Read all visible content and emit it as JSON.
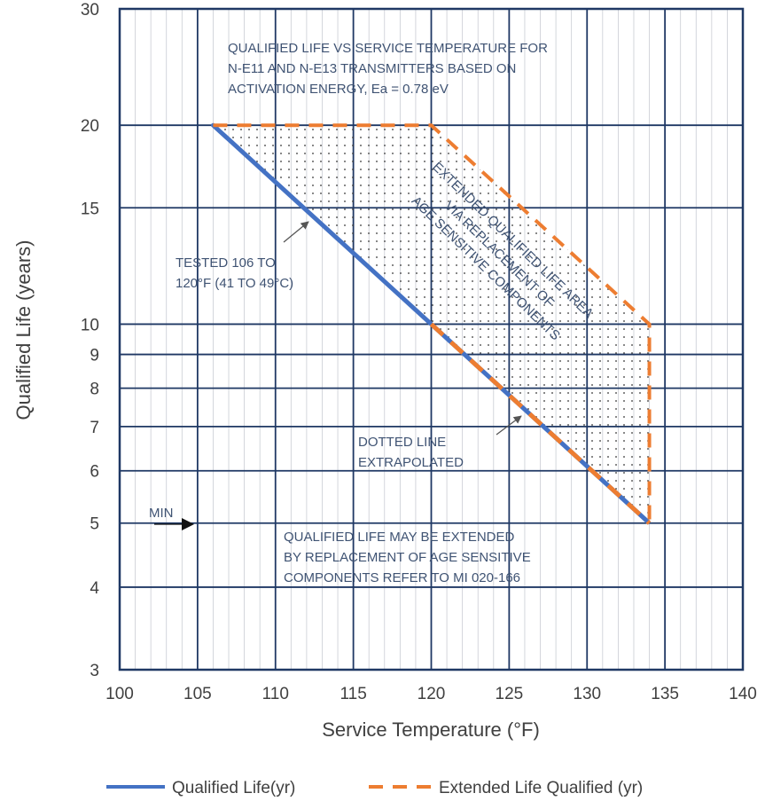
{
  "chart_data": {
    "type": "line",
    "xlabel": "Service Temperature (°F)",
    "ylabel": "Qualified Life (years)",
    "xlim": [
      100,
      140
    ],
    "ylim": [
      3,
      30
    ],
    "yscale": "log",
    "xticks": [
      100,
      105,
      110,
      115,
      120,
      125,
      130,
      135,
      140
    ],
    "yticks": [
      3,
      4,
      5,
      6,
      7,
      8,
      9,
      10,
      15,
      20,
      30
    ],
    "grid": true,
    "legend_position": "bottom",
    "series": [
      {
        "name": "Qualified Life(yr)",
        "color": "#4472c4",
        "style": "solid",
        "points": [
          [
            106,
            20
          ],
          [
            120,
            10
          ]
        ]
      },
      {
        "name": "Qualified Life(yr)",
        "color": "#4472c4",
        "style": "dotted-extrapolated",
        "points": [
          [
            120,
            10
          ],
          [
            134,
            5
          ]
        ]
      },
      {
        "name": "Extended Life Qualified (yr)",
        "color": "#ed7d31",
        "style": "dashed",
        "points": [
          [
            106,
            20
          ],
          [
            120,
            20
          ],
          [
            134,
            10
          ],
          [
            134,
            5
          ]
        ]
      }
    ],
    "shaded_region": {
      "label": "EXTENDED QUALIFIED LIFE AREA VIA REPLACEMENT OF AGE SENSITIVE COMPONENTS",
      "polygon": [
        [
          106,
          20
        ],
        [
          120,
          20
        ],
        [
          134,
          10
        ],
        [
          134,
          5
        ],
        [
          120,
          10
        ]
      ]
    },
    "annotations": {
      "title_lines": [
        "QUALIFIED LIFE VS SERVICE TEMPERATURE FOR",
        "N-E11 AND N-E13 TRANSMITTERS BASED ON",
        "ACTIVATION ENERGY, Ea = 0.78 eV"
      ],
      "region_lines": [
        "EXTENDED QUALIFIED LIFE AREA",
        "VIA REPLACEMENT OF",
        "AGE SENSITIVE COMPONENTS"
      ],
      "tested_lines": [
        "TESTED 106 TO",
        "120°F (41 TO 49°C)"
      ],
      "dotted_lines": [
        "DOTTED LINE",
        "EXTRAPOLATED"
      ],
      "min_label": "MIN",
      "note_lines": [
        "QUALIFIED LIFE MAY BE EXTENDED",
        "BY REPLACEMENT OF AGE SENSITIVE",
        "COMPONENTS REFER TO MI 020-166"
      ]
    }
  }
}
